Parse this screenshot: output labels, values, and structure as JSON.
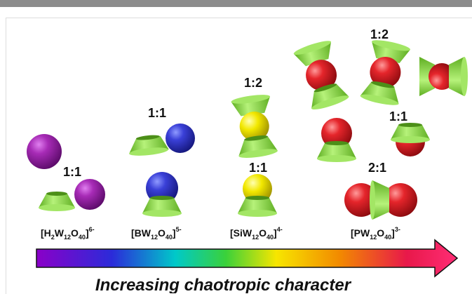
{
  "ratios": {
    "h2w12_11": "1:1",
    "bw12_11": "1:1",
    "siw12_12": "1:2",
    "siw12_11": "1:1",
    "pw12_12": "1:2",
    "pw12_11": "1:1",
    "pw12_21": "2:1"
  },
  "formulas": {
    "h2w12": {
      "open": "[H",
      "s1": "2",
      "w": "W",
      "s2": "12",
      "o": "O",
      "s3": "40",
      "close": "]",
      "charge": "6-"
    },
    "bw12": {
      "open": "[BW",
      "s2": "12",
      "o": "O",
      "s3": "40",
      "close": "]",
      "charge": "5-"
    },
    "siw12": {
      "open": "[SiW",
      "s2": "12",
      "o": "O",
      "s3": "40",
      "close": "]",
      "charge": "4-"
    },
    "pw12": {
      "open": "[PW",
      "s2": "12",
      "o": "O",
      "s3": "40",
      "close": "]",
      "charge": "3-"
    }
  },
  "arrow_caption": "Increasing chaotropic character",
  "colors": {
    "purple": "#9a1fa8",
    "blue": "#3a3fd6",
    "yellow": "#f0e400",
    "red": "#e3232a",
    "cyclodextrin_green": "#8ee04a",
    "arrow_gradient": [
      "#8a00c8",
      "#2b2bd9",
      "#00c9c9",
      "#3ad13a",
      "#f7e600",
      "#f28a00",
      "#e8184a",
      "#ff2d75"
    ]
  }
}
